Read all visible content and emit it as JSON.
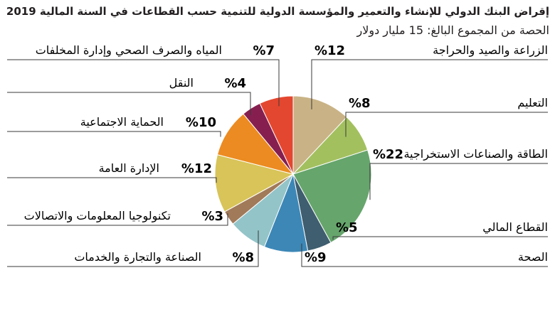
{
  "chart_data": {
    "type": "pie",
    "title": "إقراض البنك الدولي للإنشاء والتعمير والمؤسسة الدولية للتنمية حسب القطاعات في السنة المالية 2019",
    "subtitle": "الحصة من المجموع البالغ: 15 مليار دولار",
    "slices": [
      {
        "label": "الزراعة والصيد والحراجة",
        "value": 12,
        "display": "%12",
        "color": "#c9b386"
      },
      {
        "label": "التعليم",
        "value": 8,
        "display": "%8",
        "color": "#a3c05f"
      },
      {
        "label": "الطاقة والصناعات الاستخراجية",
        "value": 22,
        "display": "%22",
        "color": "#66a56c"
      },
      {
        "label": "القطاع المالي",
        "value": 5,
        "display": "%5",
        "color": "#3f5e6f"
      },
      {
        "label": "الصحة",
        "value": 9,
        "display": "%9",
        "color": "#3c87b6"
      },
      {
        "label": "الصناعة والتجارة والخدمات",
        "value": 8,
        "display": "%8",
        "color": "#93c4c8"
      },
      {
        "label": "تكنولوجيا المعلومات والاتصالات",
        "value": 3,
        "display": "%3",
        "color": "#a17a5a"
      },
      {
        "label": "الإدارة العامة",
        "value": 12,
        "display": "%12",
        "color": "#d8c459"
      },
      {
        "label": "الحماية الاجتماعية",
        "value": 10,
        "display": "%10",
        "color": "#ec8b21"
      },
      {
        "label": "النقل",
        "value": 4,
        "display": "%4",
        "color": "#861f50"
      },
      {
        "label": "المياه والصرف الصحي وإدارة المخلفات",
        "value": 7,
        "display": "%7",
        "color": "#e4472f"
      }
    ]
  }
}
